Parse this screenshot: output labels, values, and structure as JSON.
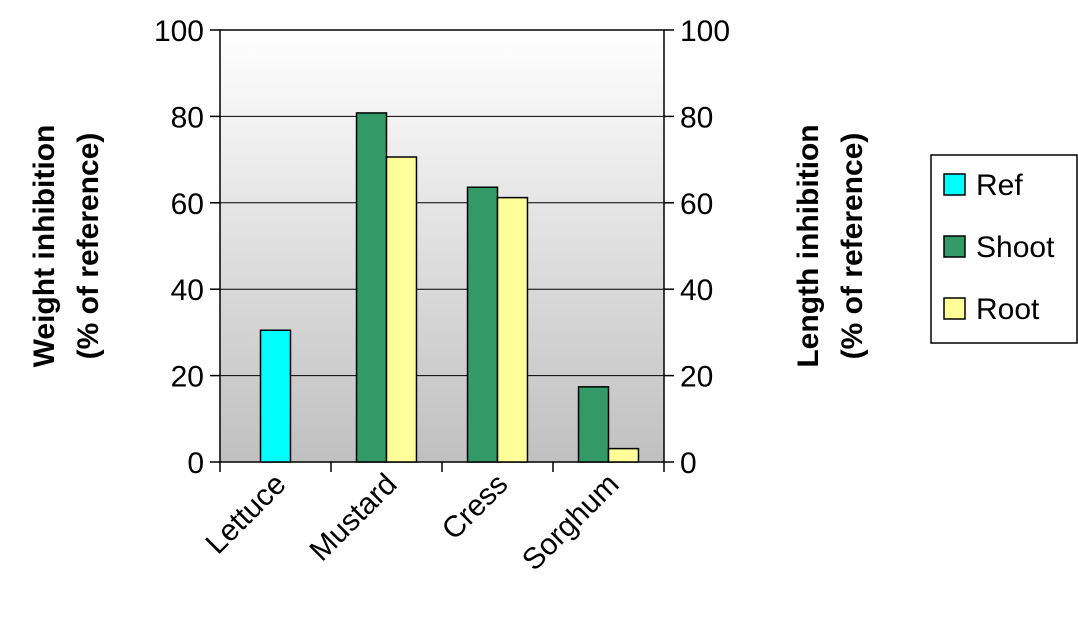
{
  "chart_data": {
    "type": "bar",
    "categories": [
      "Lettuce",
      "Mustard",
      "Cress",
      "Sorghum"
    ],
    "series": [
      {
        "name": "Ref",
        "values": [
          30.5,
          null,
          null,
          null
        ],
        "color": "#00ffff"
      },
      {
        "name": "Shoot",
        "values": [
          null,
          80.8,
          63.6,
          17.4
        ],
        "color": "#339966"
      },
      {
        "name": "Root",
        "values": [
          null,
          70.6,
          61.2,
          3.1
        ],
        "color": "#ffff99"
      }
    ],
    "y_left": {
      "label_line1": "Weight inhibition",
      "label_line2": "(% of reference)",
      "range": [
        0,
        100
      ],
      "ticks": [
        0,
        20,
        40,
        60,
        80,
        100
      ]
    },
    "y_right": {
      "label_line1": "Length inhibition",
      "label_line2": "(% of reference)",
      "range": [
        0,
        100
      ],
      "ticks": [
        0,
        20,
        40,
        60,
        80,
        100
      ]
    },
    "grid": true,
    "legend_position": "right"
  }
}
